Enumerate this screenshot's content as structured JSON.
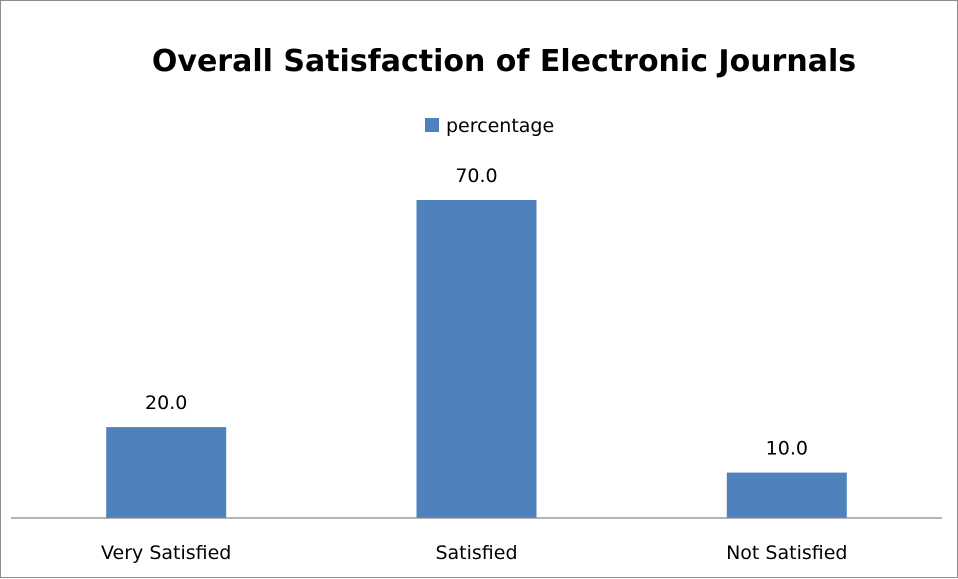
{
  "chart_data": {
    "type": "bar",
    "title": "Overall Satisfaction of Electronic Journals",
    "categories": [
      "Very Satisfied",
      "Satisfied",
      "Not Satisfied"
    ],
    "series": [
      {
        "name": "percentage",
        "values": [
          20.0,
          70.0,
          10.0
        ],
        "data_labels": [
          "20.0",
          "70.0",
          "10.0"
        ]
      }
    ],
    "xlabel": "",
    "ylabel": "",
    "ylim": [
      0,
      80
    ],
    "grid": false,
    "y_axis_visible": false,
    "legend": "top-center",
    "colors": {
      "bar": "#4f81bd",
      "axis": "#868686"
    }
  }
}
